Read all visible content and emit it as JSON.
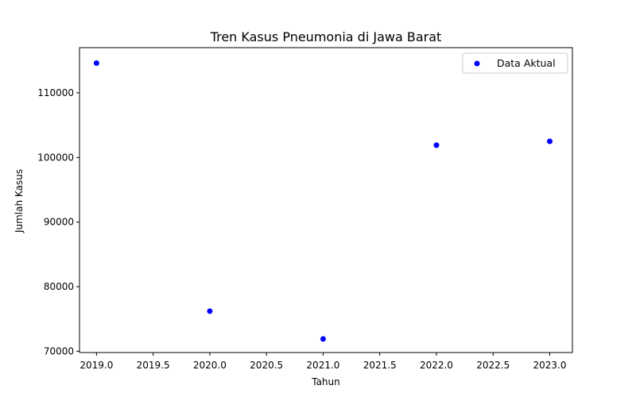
{
  "chart_data": {
    "type": "scatter",
    "title": "Tren Kasus Pneumonia di Jawa Barat",
    "xlabel": "Tahun",
    "ylabel": "Jumlah Kasus",
    "xlim": [
      2018.85,
      2023.2
    ],
    "ylim": [
      69800,
      117000
    ],
    "xticks": [
      2019.0,
      2019.5,
      2020.0,
      2020.5,
      2021.0,
      2021.5,
      2022.0,
      2022.5,
      2023.0
    ],
    "xtick_labels": [
      "2019.0",
      "2019.5",
      "2020.0",
      "2020.5",
      "2021.0",
      "2021.5",
      "2022.0",
      "2022.5",
      "2023.0"
    ],
    "yticks": [
      70000,
      80000,
      90000,
      100000,
      110000
    ],
    "ytick_labels": [
      "70000",
      "80000",
      "90000",
      "100000",
      "110000"
    ],
    "grid": false,
    "legend_position": "top-right",
    "series": [
      {
        "name": "Data Aktual",
        "color": "#0000ff",
        "x": [
          2019,
          2020,
          2021,
          2022,
          2023
        ],
        "y": [
          114600,
          76200,
          71900,
          101900,
          102500
        ]
      }
    ]
  }
}
